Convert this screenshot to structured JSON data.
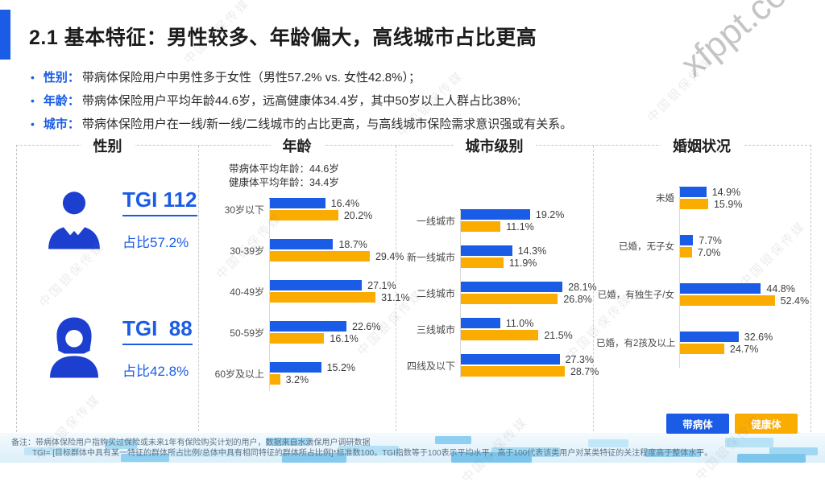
{
  "slide": {
    "title": "2.1 基本特征：男性较多、年龄偏大，高线城市占比更高",
    "bullets": [
      {
        "label": "性别：",
        "text": "带病体保险用户中男性多于女性（男性57.2% vs. 女性42.8%）；"
      },
      {
        "label": "年龄：",
        "text": "带病体保险用户平均年龄44.6岁，远高健康体34.4岁，其中50岁以上人群占比38%;"
      },
      {
        "label": "城市：",
        "text": "带病体保险用户在一线/新一线/二线城市的占比更高，与高线城市保险需求意识强或有关系。"
      }
    ]
  },
  "colors": {
    "diseased_blue": "#1A5CE5",
    "healthy_yellow": "#FBAC00"
  },
  "panels": {
    "gender": {
      "title": "性别",
      "male": {
        "tgi": "TGI 112",
        "share": "占比57.2%"
      },
      "female": {
        "tgi": "TGI  88",
        "share": "占比42.8%"
      }
    },
    "age": {
      "title": "年龄",
      "subtitle_line1": "带病体平均年龄：44.6岁",
      "subtitle_line2": "健康体平均年龄：34.4岁"
    },
    "city": {
      "title": "城市级别"
    },
    "marriage": {
      "title": "婚姻状况"
    }
  },
  "chart_data": [
    {
      "type": "bar",
      "orientation": "horizontal",
      "title": "年龄",
      "categories": [
        "30岁以下",
        "30-39岁",
        "40-49岁",
        "50-59岁",
        "60岁及以上"
      ],
      "series": [
        {
          "name": "带病体",
          "color": "#1A5CE5",
          "values": [
            16.4,
            18.7,
            27.1,
            22.6,
            15.2
          ]
        },
        {
          "name": "健康体",
          "color": "#FBAC00",
          "values": [
            20.2,
            29.4,
            31.1,
            16.1,
            3.2
          ]
        }
      ],
      "value_suffix": "%",
      "xlim": [
        0,
        36
      ],
      "grid": false
    },
    {
      "type": "bar",
      "orientation": "horizontal",
      "title": "城市级别",
      "categories": [
        "一线城市",
        "新一线城市",
        "二线城市",
        "三线城市",
        "四线及以下"
      ],
      "series": [
        {
          "name": "带病体",
          "color": "#1A5CE5",
          "values": [
            19.2,
            14.3,
            28.1,
            11.0,
            27.3
          ]
        },
        {
          "name": "健康体",
          "color": "#FBAC00",
          "values": [
            11.1,
            11.9,
            26.8,
            21.5,
            28.7
          ]
        }
      ],
      "value_suffix": "%",
      "xlim": [
        0,
        36
      ],
      "grid": false
    },
    {
      "type": "bar",
      "orientation": "horizontal",
      "title": "婚姻状况",
      "categories": [
        "未婚",
        "已婚，无子女",
        "已婚，有独生子/女",
        "已婚，有2孩及以上"
      ],
      "series": [
        {
          "name": "带病体",
          "color": "#1A5CE5",
          "values": [
            14.9,
            7.7,
            44.8,
            32.6
          ]
        },
        {
          "name": "健康体",
          "color": "#FBAC00",
          "values": [
            15.9,
            7.0,
            52.4,
            24.7
          ]
        }
      ],
      "value_suffix": "%",
      "xlim": [
        0,
        72
      ],
      "grid": false
    }
  ],
  "legend": {
    "position": "bottom-right",
    "items": [
      {
        "label": "带病体",
        "color": "#1A5CE5"
      },
      {
        "label": "健康体",
        "color": "#FBAC00"
      }
    ]
  },
  "footnotes": [
    "备注：带病体保险用户指购买过保险或未来1年有保险购买计划的用户，数据来自水滴保用户调研数据",
    "TGI= [目标群体中具有某一特征的群体所占比例/总体中具有相同特征的群体所占比例]*标准数100。TGI指数等于100表示平均水平，高于100代表该类用户对某类特征的关注程度高于整体水平。"
  ],
  "watermarks": {
    "brand": "中国银保传媒",
    "site": "xfppt.com"
  }
}
